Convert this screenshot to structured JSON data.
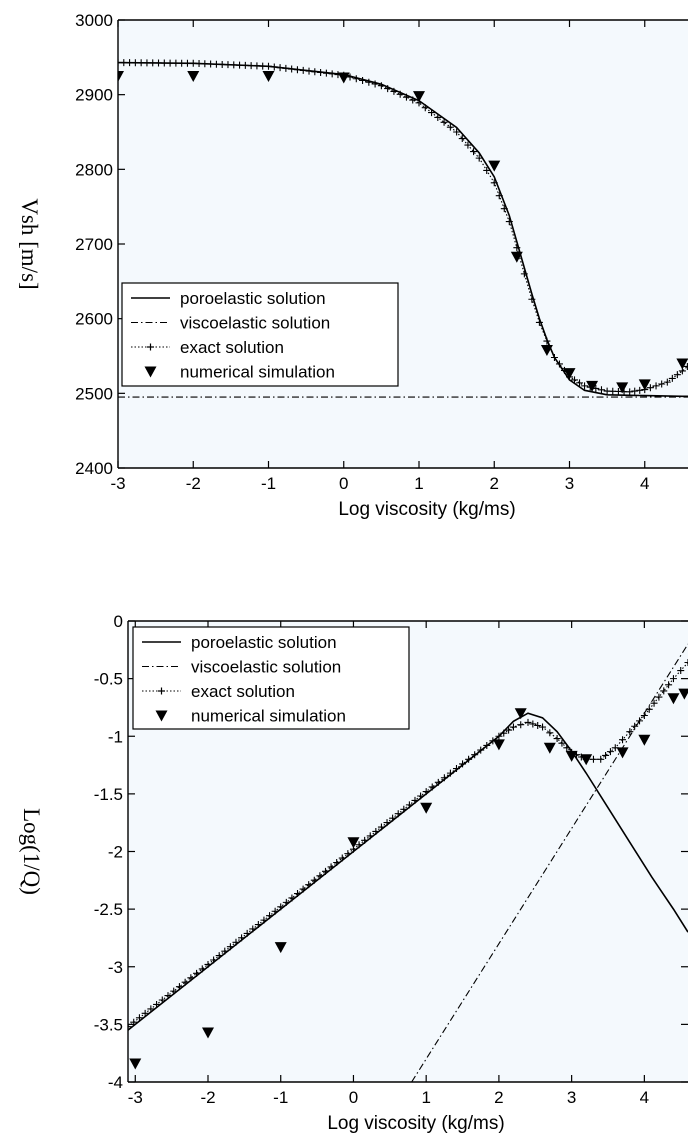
{
  "chart_data": [
    {
      "type": "line",
      "xlabel": "Log viscosity (kg/ms)",
      "ylabel": "Vsh [m/s]",
      "xlim": [
        -3,
        5
      ],
      "ylim": [
        2400,
        3000
      ],
      "xticks": [
        -3,
        -2,
        -1,
        0,
        1,
        2,
        3,
        4
      ],
      "yticks": [
        2400,
        2500,
        2600,
        2700,
        2800,
        2900,
        3000
      ],
      "legend_position": "bottom-left",
      "legend": [
        "poroelastic solution",
        "viscoelastic solution",
        "exact solution",
        "numerical simulation"
      ],
      "series": [
        {
          "name": "poroelastic solution",
          "style": "solid",
          "x": [
            -3,
            -2,
            -1,
            0,
            0.5,
            1,
            1.5,
            1.8,
            2,
            2.2,
            2.3,
            2.4,
            2.5,
            2.6,
            2.7,
            2.8,
            3,
            3.2,
            3.5,
            4,
            4.5,
            5
          ],
          "values": [
            2943,
            2942,
            2938,
            2927,
            2914,
            2892,
            2856,
            2822,
            2790,
            2738,
            2703,
            2668,
            2633,
            2600,
            2572,
            2548,
            2518,
            2504,
            2498,
            2497,
            2496,
            2496
          ]
        },
        {
          "name": "viscoelastic solution",
          "style": "dash-dot",
          "x": [
            -3,
            5
          ],
          "values": [
            2495,
            2495
          ]
        },
        {
          "name": "exact solution",
          "style": "dotted-plus",
          "x": [
            -3,
            -2,
            -1,
            0,
            0.5,
            1,
            1.5,
            1.8,
            2,
            2.2,
            2.3,
            2.4,
            2.5,
            2.6,
            2.7,
            2.8,
            3,
            3.2,
            3.5,
            3.8,
            4,
            4.3,
            4.5,
            4.7,
            5
          ],
          "values": [
            2943,
            2942,
            2938,
            2926,
            2912,
            2889,
            2850,
            2815,
            2782,
            2730,
            2695,
            2660,
            2626,
            2595,
            2570,
            2548,
            2522,
            2510,
            2503,
            2502,
            2505,
            2515,
            2530,
            2548,
            2580
          ]
        },
        {
          "name": "numerical simulation",
          "style": "triangle-down",
          "x": [
            -3,
            -2,
            -1,
            0,
            1,
            2,
            2.3,
            2.7,
            3,
            3.3,
            3.7,
            4,
            4.5
          ],
          "values": [
            2925,
            2925,
            2925,
            2923,
            2898,
            2805,
            2683,
            2558,
            2527,
            2510,
            2508,
            2512,
            2540
          ]
        }
      ]
    },
    {
      "type": "line",
      "xlabel": "Log viscosity (kg/ms)",
      "ylabel": "Log(1/Q)",
      "xlim": [
        -3.1,
        4.6
      ],
      "ylim": [
        -4,
        0
      ],
      "xticks": [
        -3,
        -2,
        -1,
        0,
        1,
        2,
        3,
        4
      ],
      "ytick_labels": [
        "0",
        "-0.5",
        "-1",
        "-1.5",
        "-2",
        "-2.5",
        "-3",
        "-3.5",
        "-4"
      ],
      "yticks": [
        0,
        -0.5,
        -1,
        -1.5,
        -2,
        -2.5,
        -3,
        -3.5,
        -4
      ],
      "legend_position": "top-left",
      "legend": [
        "poroelastic solution",
        "viscoelastic solution",
        "exact solution",
        "numerical simulation"
      ],
      "series": [
        {
          "name": "poroelastic solution",
          "style": "solid",
          "x": [
            -3.1,
            -2,
            -1,
            0,
            1,
            1.5,
            2,
            2.2,
            2.4,
            2.6,
            2.8,
            3,
            3.2,
            3.5,
            3.8,
            4.1,
            4.4,
            4.6
          ],
          "values": [
            -3.55,
            -3.0,
            -2.5,
            -2.0,
            -1.5,
            -1.25,
            -1.0,
            -0.87,
            -0.8,
            -0.84,
            -0.96,
            -1.13,
            -1.32,
            -1.62,
            -1.92,
            -2.22,
            -2.5,
            -2.7
          ]
        },
        {
          "name": "viscoelastic solution",
          "style": "dash-dot",
          "x": [
            0.8,
            2,
            3,
            4,
            4.6
          ],
          "values": [
            -4.0,
            -2.8,
            -1.8,
            -0.8,
            -0.2
          ]
        },
        {
          "name": "exact solution",
          "style": "dotted-plus",
          "x": [
            -3.1,
            -2,
            -1,
            0,
            1,
            1.5,
            2,
            2.2,
            2.4,
            2.6,
            2.8,
            3,
            3.2,
            3.4,
            3.6,
            3.8,
            4,
            4.2,
            4.4,
            4.6
          ],
          "values": [
            -3.52,
            -2.98,
            -2.48,
            -1.98,
            -1.48,
            -1.24,
            -1.0,
            -0.92,
            -0.88,
            -0.92,
            -1.02,
            -1.14,
            -1.2,
            -1.2,
            -1.1,
            -0.96,
            -0.82,
            -0.66,
            -0.5,
            -0.36
          ]
        },
        {
          "name": "numerical simulation",
          "style": "triangle-down",
          "x": [
            -3,
            -2,
            -1,
            0,
            1,
            2,
            2.3,
            2.7,
            3,
            3.2,
            3.7,
            4,
            4.4,
            4.55
          ],
          "values": [
            -3.84,
            -3.57,
            -2.83,
            -1.92,
            -1.62,
            -1.07,
            -0.8,
            -1.1,
            -1.17,
            -1.2,
            -1.14,
            -1.03,
            -0.67,
            -0.63
          ]
        }
      ]
    }
  ]
}
